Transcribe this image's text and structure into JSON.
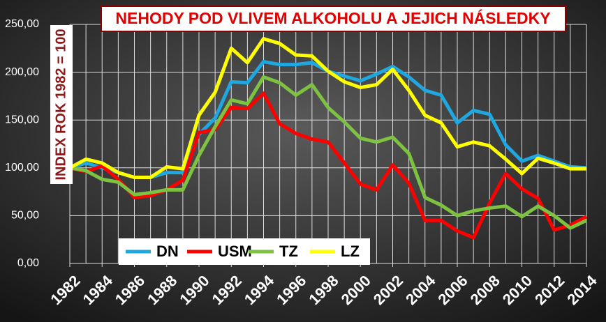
{
  "chart_data": {
    "type": "line",
    "title": "NEHODY  POD VLIVEM ALKOHOLU A JEJICH NÁSLEDKY",
    "y_label": "INDEX ROK 1982 = 100",
    "x": [
      1982,
      1983,
      1984,
      1985,
      1986,
      1987,
      1988,
      1989,
      1990,
      1991,
      1992,
      1993,
      1994,
      1995,
      1996,
      1997,
      1998,
      1999,
      2000,
      2001,
      2002,
      2003,
      2004,
      2005,
      2006,
      2007,
      2008,
      2009,
      2010,
      2011,
      2012,
      2013,
      2014
    ],
    "xlim": [
      1982,
      2014
    ],
    "xticks": [
      1982,
      1984,
      1986,
      1988,
      1990,
      1992,
      1994,
      1996,
      1998,
      2000,
      2002,
      2004,
      2006,
      2008,
      2010,
      2012,
      2014
    ],
    "ylim": [
      0,
      250
    ],
    "yticks": [
      {
        "value": 0,
        "label": "0,00"
      },
      {
        "value": 50,
        "label": "50,00"
      },
      {
        "value": 100,
        "label": "100,00"
      },
      {
        "value": 150,
        "label": "150,00"
      },
      {
        "value": 200,
        "label": "200,00"
      },
      {
        "value": 250,
        "label": "250,00"
      }
    ],
    "grid": true,
    "series": [
      {
        "name": "DN",
        "color": "#1fa7e0",
        "values": [
          100,
          105,
          100,
          95,
          90,
          90,
          95,
          95,
          135,
          152,
          190,
          189,
          211,
          208,
          208,
          210,
          201,
          196,
          191,
          198,
          206,
          195,
          181,
          176,
          147,
          160,
          156,
          124,
          107,
          113,
          107,
          101,
          100
        ]
      },
      {
        "name": "USM",
        "color": "#ff0000",
        "values": [
          100,
          96,
          102,
          88,
          69,
          71,
          77,
          87,
          137,
          140,
          163,
          162,
          178,
          146,
          136,
          130,
          127,
          105,
          83,
          77,
          103,
          84,
          45,
          45,
          34,
          27,
          63,
          94,
          78,
          68,
          35,
          40,
          49
        ]
      },
      {
        "name": "TZ",
        "color": "#7ec241",
        "values": [
          100,
          97,
          88,
          85,
          72,
          74,
          77,
          77,
          113,
          143,
          171,
          167,
          195,
          189,
          176,
          187,
          163,
          148,
          131,
          127,
          132,
          115,
          69,
          61,
          50,
          55,
          58,
          60,
          49,
          60,
          50,
          37,
          45
        ]
      },
      {
        "name": "LZ",
        "color": "#ffff00",
        "values": [
          100,
          109,
          105,
          95,
          90,
          90,
          101,
          99,
          155,
          179,
          225,
          210,
          235,
          230,
          218,
          217,
          201,
          190,
          184,
          187,
          203,
          181,
          155,
          147,
          122,
          127,
          123,
          109,
          94,
          110,
          105,
          99,
          99
        ]
      }
    ]
  }
}
